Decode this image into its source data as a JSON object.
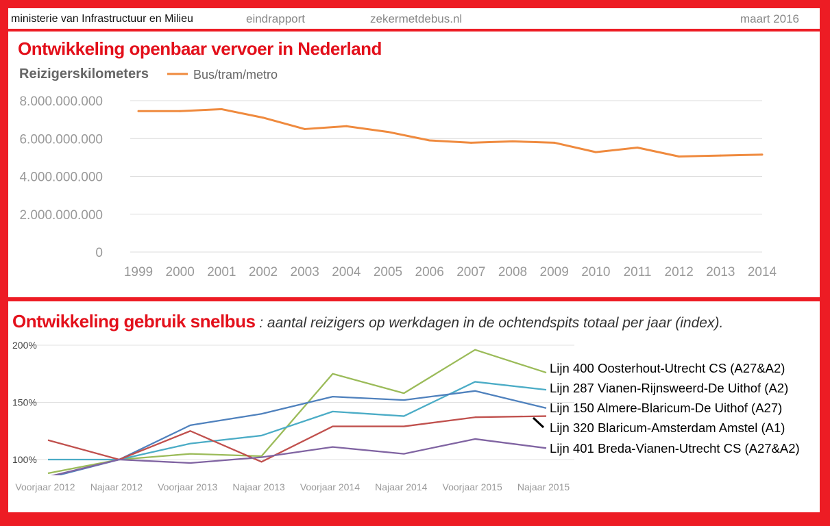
{
  "header": {
    "ministry": "ministerie van Infrastructuur en Milieu",
    "report": "eindrapport",
    "site": "zekermetdebus.nl",
    "date": "maart 2016"
  },
  "chart1": {
    "title": "Ontwikkeling openbaar vervoer in Nederland",
    "ylabel": "Reizigerskilometers",
    "legend_label": "Bus/tram/metro",
    "ytick_labels": [
      "0",
      "2.000.000.000",
      "4.000.000.000",
      "6.000.000.000",
      "8.000.000.000"
    ],
    "color": "#ef8a3e"
  },
  "chart2": {
    "title": "Ontwikkeling gebruik snelbus",
    "subtitle": " : aantal reizigers op werkdagen in de ochtendspits totaal per jaar (index).",
    "ytick_labels": [
      "100%",
      "150%",
      "200%"
    ]
  },
  "chart_data": [
    {
      "type": "line",
      "title": "Ontwikkeling openbaar vervoer in Nederland",
      "ylabel": "Reizigerskilometers",
      "x": [
        "1999",
        "2000",
        "2001",
        "2002",
        "2003",
        "2004",
        "2005",
        "2006",
        "2007",
        "2008",
        "2009",
        "2010",
        "2011",
        "2012",
        "2013",
        "2014"
      ],
      "series": [
        {
          "name": "Bus/tram/metro",
          "color": "#ef8a3e",
          "values": [
            7450000000,
            7450000000,
            7550000000,
            7100000000,
            6500000000,
            6650000000,
            6350000000,
            5900000000,
            5780000000,
            5850000000,
            5780000000,
            5280000000,
            5520000000,
            5050000000,
            5100000000,
            5150000000
          ]
        }
      ],
      "ylim": [
        0,
        8000000000
      ],
      "grid": true,
      "legend": "top-left"
    },
    {
      "type": "line",
      "title": "Ontwikkeling gebruik snelbus",
      "subtitle": ": aantal reizigers op werkdagen in de ochtendspits totaal per jaar (index).",
      "x": [
        "Voorjaar 2012",
        "Najaar 2012",
        "Voorjaar 2013",
        "Najaar 2013",
        "Voorjaar 2014",
        "Najaar 2014",
        "Voorjaar 2015",
        "Najaar 2015"
      ],
      "ylim": [
        85,
        200
      ],
      "grid": true,
      "legend": "right",
      "series": [
        {
          "name": "Lijn 400 Oosterhout-Utrecht CS (A27&A2)",
          "color": "#9bbb59",
          "values": [
            88,
            100,
            105,
            103,
            175,
            158,
            196,
            176
          ]
        },
        {
          "name": "Lijn 287 Vianen-Rijnsweerd-De Uithof (A2)",
          "color": "#4bacc6",
          "values": [
            100,
            100,
            114,
            121,
            142,
            138,
            168,
            161
          ]
        },
        {
          "name": "Lijn 150 Almere-Blaricum-De Uithof (A27)",
          "color": "#4f81bd",
          "values": [
            84,
            100,
            130,
            140,
            155,
            152,
            160,
            145
          ]
        },
        {
          "name": "Lijn 320 Blaricum-Amsterdam Amstel (A1)",
          "color": "#c0504d",
          "values": [
            117,
            100,
            125,
            98,
            129,
            129,
            137,
            138
          ]
        },
        {
          "name": "Lijn 401 Breda-Vianen-Utrecht CS (A27&A2)",
          "color": "#8064a2",
          "values": [
            85,
            100,
            97,
            102,
            111,
            105,
            118,
            110
          ]
        }
      ]
    }
  ]
}
